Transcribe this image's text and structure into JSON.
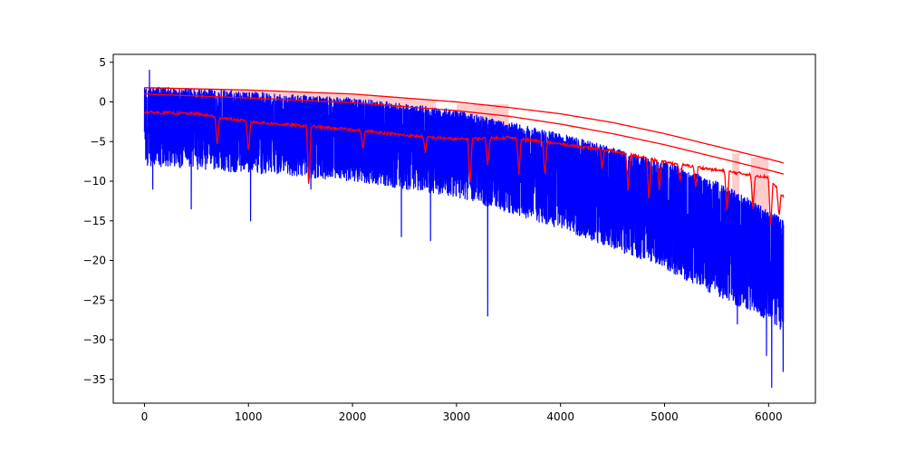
{
  "chart_data": {
    "type": "line",
    "title": "",
    "xlabel": "",
    "ylabel": "",
    "xlim": [
      -300,
      6450
    ],
    "ylim": [
      -38,
      6
    ],
    "x_ticks": [
      0,
      1000,
      2000,
      3000,
      4000,
      5000,
      6000
    ],
    "y_ticks": [
      5,
      0,
      -5,
      -10,
      -15,
      -20,
      -25,
      -30,
      -35
    ],
    "x_tick_labels": [
      "0",
      "1000",
      "2000",
      "3000",
      "4000",
      "5000",
      "6000"
    ],
    "y_tick_labels": [
      "5",
      "0",
      "−5",
      "−10",
      "−15",
      "−20",
      "−25",
      "−30",
      "−35"
    ],
    "grid": false,
    "legend": "none",
    "n_points": 6144,
    "series": [
      {
        "kind": "noisy-signal",
        "color": "#0000ff",
        "points": 6144,
        "upper_envelope": [
          [
            0,
            2.0
          ],
          [
            1000,
            1.3
          ],
          [
            2000,
            0.5
          ],
          [
            3000,
            -1.0
          ],
          [
            4000,
            -4.0
          ],
          [
            5000,
            -7.5
          ],
          [
            5500,
            -10.0
          ],
          [
            6000,
            -13.5
          ],
          [
            6144,
            -15.0
          ]
        ],
        "trough_envelope": [
          [
            0,
            -8.0
          ],
          [
            1000,
            -9.0
          ],
          [
            2000,
            -10.0
          ],
          [
            3000,
            -12.0
          ],
          [
            4000,
            -16.0
          ],
          [
            5000,
            -21.0
          ],
          [
            5500,
            -24.5
          ],
          [
            6000,
            -27.5
          ],
          [
            6144,
            -29.0
          ]
        ],
        "spikes": [
          [
            48,
            4.0
          ],
          [
            80,
            -11.0
          ],
          [
            450,
            -13.5
          ],
          [
            1020,
            -15.0
          ],
          [
            1600,
            -11.0
          ],
          [
            2470,
            -17.0
          ],
          [
            2750,
            -17.5
          ],
          [
            3300,
            -27.0
          ],
          [
            5700,
            -28.0
          ],
          [
            5980,
            -32.0
          ],
          [
            6030,
            -36.0
          ],
          [
            6140,
            -34.0
          ]
        ]
      },
      {
        "kind": "band-upper",
        "color": "#ff0000",
        "points": [
          [
            0,
            1.8
          ],
          [
            1000,
            1.5
          ],
          [
            2000,
            1.0
          ],
          [
            3000,
            0.0
          ],
          [
            3500,
            -0.7
          ],
          [
            4000,
            -1.5
          ],
          [
            4500,
            -2.6
          ],
          [
            5000,
            -4.0
          ],
          [
            5500,
            -5.6
          ],
          [
            6000,
            -7.2
          ],
          [
            6144,
            -7.7
          ]
        ]
      },
      {
        "kind": "band-lower",
        "color": "#ff0000",
        "points": [
          [
            0,
            1.0
          ],
          [
            1000,
            0.5
          ],
          [
            2000,
            -0.1
          ],
          [
            3000,
            -1.1
          ],
          [
            3500,
            -1.8
          ],
          [
            4000,
            -2.8
          ],
          [
            4500,
            -4.0
          ],
          [
            5000,
            -5.4
          ],
          [
            5500,
            -7.0
          ],
          [
            6000,
            -8.6
          ],
          [
            6144,
            -9.1
          ]
        ]
      },
      {
        "kind": "red-trace",
        "color": "#ff0000",
        "points": [
          [
            0,
            -1.3
          ],
          [
            500,
            -1.5
          ],
          [
            1000,
            -2.5
          ],
          [
            1500,
            -3.0
          ],
          [
            2000,
            -3.5
          ],
          [
            2500,
            -4.2
          ],
          [
            3000,
            -4.7
          ],
          [
            3500,
            -4.5
          ],
          [
            4000,
            -5.3
          ],
          [
            4500,
            -6.2
          ],
          [
            5000,
            -7.6
          ],
          [
            5500,
            -8.6
          ],
          [
            6000,
            -9.5
          ],
          [
            6144,
            -12.0
          ]
        ],
        "dips": [
          [
            700,
            -5.7
          ],
          [
            1000,
            -6.5
          ],
          [
            1580,
            -11.0
          ],
          [
            2100,
            -6.0
          ],
          [
            2700,
            -6.5
          ],
          [
            3130,
            -10.5
          ],
          [
            3300,
            -8.0
          ],
          [
            3600,
            -9.0
          ],
          [
            3850,
            -9.5
          ],
          [
            4400,
            -8.5
          ],
          [
            4650,
            -11.0
          ],
          [
            4850,
            -12.5
          ],
          [
            4950,
            -11.0
          ],
          [
            5150,
            -10.0
          ],
          [
            5300,
            -11.0
          ],
          [
            5600,
            -14.0
          ],
          [
            5850,
            -13.5
          ],
          [
            6020,
            -16.0
          ],
          [
            6100,
            -14.5
          ]
        ]
      }
    ],
    "shaded_regions": [
      {
        "x": [
          0,
          2800
        ],
        "y_series": [
          "band-upper",
          "band-lower"
        ],
        "color": "#ff0000",
        "opacity": 0.2
      },
      {
        "x": [
          3000,
          3500
        ],
        "y": [
          -4.8,
          -0.3
        ],
        "color": "#ff0000",
        "opacity": 0.2
      },
      {
        "x": [
          5650,
          5720
        ],
        "y": [
          -14.5,
          -6.5
        ],
        "color": "#ff0000",
        "opacity": 0.2
      },
      {
        "x": [
          5830,
          6000
        ],
        "y": [
          -14.0,
          -7.0
        ],
        "color": "#ff0000",
        "opacity": 0.2
      }
    ]
  }
}
